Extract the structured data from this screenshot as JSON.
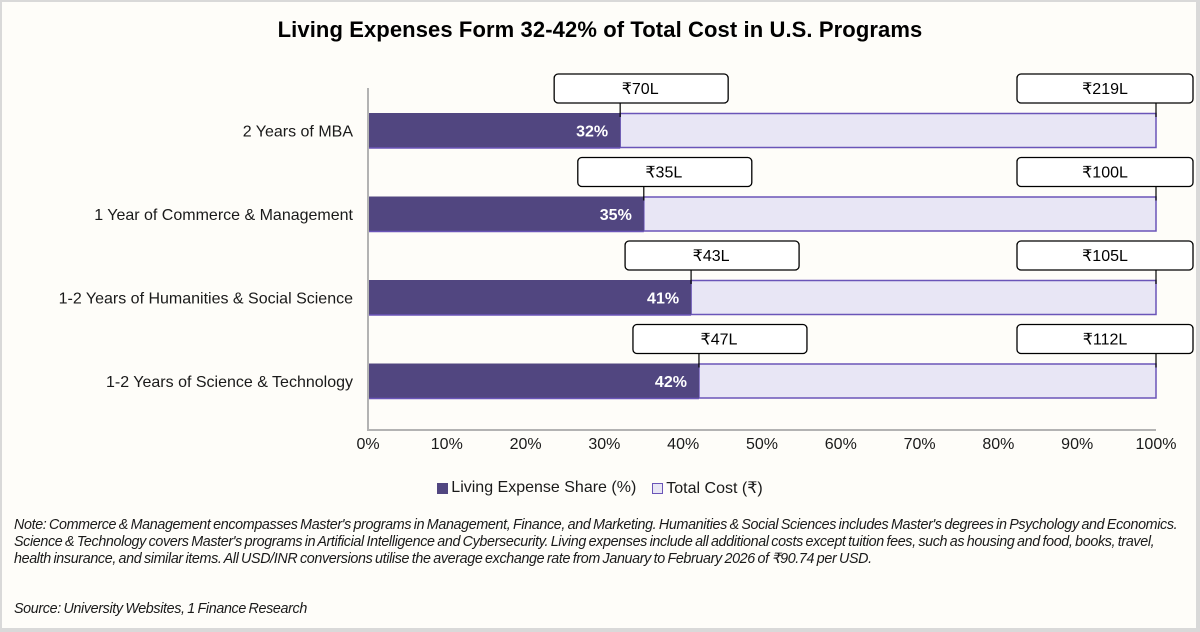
{
  "colors": {
    "living": "#514680",
    "total": "#e8e6f5",
    "total_border": "#6a55b8",
    "axis": "#b3b3b3"
  },
  "chart_data": {
    "type": "bar",
    "orientation": "horizontal",
    "stacked": "100%",
    "title": "Living Expenses Form 32-42% of Total Cost in U.S. Programs",
    "xlabel": "",
    "ylabel": "",
    "xlim": [
      0,
      100
    ],
    "x_ticks": [
      "0%",
      "10%",
      "20%",
      "30%",
      "40%",
      "50%",
      "60%",
      "70%",
      "80%",
      "90%",
      "100%"
    ],
    "grid": false,
    "legend_position": "bottom",
    "categories": [
      "2 Years of MBA",
      "1 Year of Commerce & Management",
      "1-2 Years of Humanities & Social Science",
      "1-2 Years of Science & Technology"
    ],
    "series": [
      {
        "name": "Living Expense Share (%)",
        "values": [
          32,
          35,
          41,
          42
        ],
        "labels": [
          "32%",
          "35%",
          "41%",
          "42%"
        ],
        "callouts": [
          "₹70L",
          "₹35L",
          "₹43L",
          "₹47L"
        ]
      },
      {
        "name": "Total Cost (₹)",
        "values": [
          68,
          65,
          59,
          58
        ],
        "callouts": [
          "₹219L",
          "₹100L",
          "₹105L",
          "₹112L"
        ]
      }
    ]
  },
  "legend": [
    {
      "label": "Living Expense Share (%)"
    },
    {
      "label": "Total Cost (₹)"
    }
  ],
  "note": "Note: Commerce & Management encompasses Master's programs in Management, Finance, and Marketing. Humanities & Social Sciences includes Master's degrees in Psychology and Economics. Science & Technology covers Master's programs in Artificial Intelligence and Cybersecurity. Living expenses include all additional costs except tuition fees, such as housing and food, books, travel, health insurance, and similar items. All USD/INR conversions utilise the average exchange rate from January to February 2026 of ₹90.74 per USD.",
  "source": "Source: University Websites, 1 Finance Research"
}
